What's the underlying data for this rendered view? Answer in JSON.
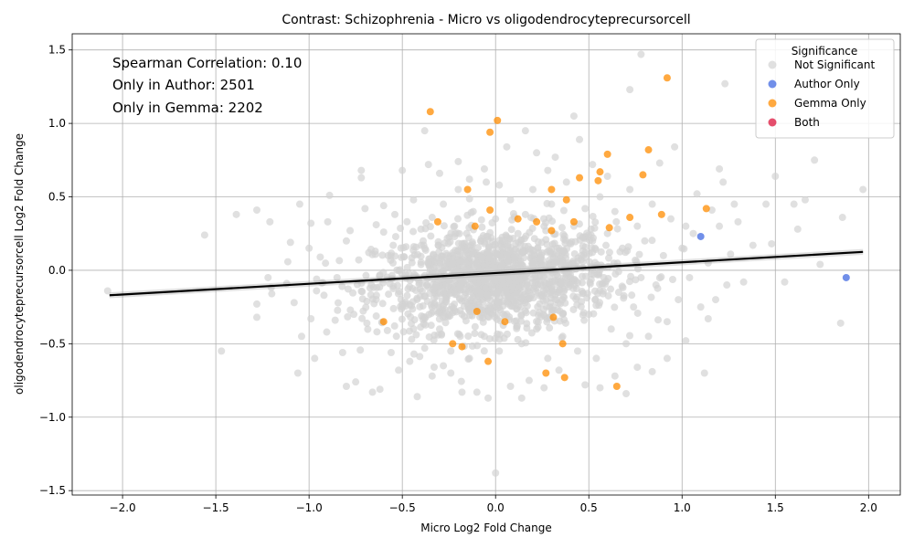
{
  "chart_data": {
    "type": "scatter",
    "title": "Contrast: Schizophrenia - Micro vs oligodendrocyteprecursorcell",
    "xlabel": "Micro Log2 Fold Change",
    "ylabel": "oligodendrocyteprecursorcell Log2 Fold Change",
    "xlim": [
      -2.27,
      2.17
    ],
    "ylim": [
      -1.53,
      1.61
    ],
    "xticks": [
      "−2.0",
      "−1.5",
      "−1.0",
      "−0.5",
      "0.0",
      "0.5",
      "1.0",
      "1.5",
      "2.0"
    ],
    "xtick_values": [
      -2.0,
      -1.5,
      -1.0,
      -0.5,
      0.0,
      0.5,
      1.0,
      1.5,
      2.0
    ],
    "yticks": [
      "−1.5",
      "−1.0",
      "−0.5",
      "0.0",
      "0.5",
      "1.0",
      "1.5"
    ],
    "ytick_values": [
      -1.5,
      -1.0,
      -0.5,
      0.0,
      0.5,
      1.0,
      1.5
    ],
    "grid": true,
    "annotations": [
      "Spearman Correlation: 0.10",
      "Only in Author: 2501",
      "Only in Gemma: 2202"
    ],
    "legend": {
      "title": "Significance",
      "placement": "top-right",
      "entries": [
        {
          "label": "Not Significant",
          "color": "#d3d3d3"
        },
        {
          "label": "Author Only",
          "color": "#4169e1"
        },
        {
          "label": "Gemma Only",
          "color": "#ff8c00"
        },
        {
          "label": "Both",
          "color": "#dc143c"
        }
      ]
    },
    "regression_line": {
      "x": [
        -2.07,
        1.97
      ],
      "y": [
        -0.17,
        0.125
      ],
      "color": "#000000"
    },
    "series": [
      {
        "name": "Not Significant",
        "color": "#d3d3d3",
        "points": [
          [
            -2.08,
            -0.14
          ],
          [
            -1.56,
            0.24
          ],
          [
            -1.47,
            -0.55
          ],
          [
            -1.39,
            0.38
          ],
          [
            -1.28,
            0.41
          ],
          [
            -1.28,
            -0.23
          ],
          [
            -1.28,
            -0.32
          ],
          [
            -1.22,
            -0.05
          ],
          [
            -1.21,
            0.33
          ],
          [
            -1.2,
            -0.16
          ],
          [
            -1.12,
            -0.09
          ],
          [
            -1.1,
            0.19
          ],
          [
            -1.08,
            -0.22
          ],
          [
            -1.06,
            -0.7
          ],
          [
            -1.05,
            0.45
          ],
          [
            -1.04,
            -0.45
          ],
          [
            -0.99,
            0.32
          ],
          [
            -0.99,
            -0.33
          ],
          [
            -0.97,
            -0.6
          ],
          [
            -0.94,
            0.09
          ],
          [
            -0.92,
            -0.17
          ],
          [
            -0.89,
            0.51
          ],
          [
            -0.86,
            -0.34
          ],
          [
            -0.82,
            -0.56
          ],
          [
            -0.8,
            -0.79
          ],
          [
            -0.78,
            0.27
          ],
          [
            -0.75,
            -0.76
          ],
          [
            -0.72,
            0.68
          ],
          [
            -0.72,
            0.63
          ],
          [
            -0.69,
            -0.36
          ],
          [
            -0.66,
            -0.83
          ],
          [
            -0.64,
            0.31
          ],
          [
            -0.62,
            -0.81
          ],
          [
            -0.6,
            0.44
          ],
          [
            -0.56,
            -0.56
          ],
          [
            -0.52,
            -0.68
          ],
          [
            -0.5,
            0.68
          ],
          [
            -0.46,
            -0.62
          ],
          [
            -0.42,
            -0.86
          ],
          [
            -0.38,
            0.95
          ],
          [
            -0.36,
            0.72
          ],
          [
            -0.34,
            -0.72
          ],
          [
            -0.3,
            0.66
          ],
          [
            -0.28,
            -0.65
          ],
          [
            -0.24,
            -0.7
          ],
          [
            -0.2,
            0.74
          ],
          [
            -0.18,
            -0.83
          ],
          [
            -0.14,
            0.62
          ],
          [
            -0.1,
            -0.83
          ],
          [
            -0.06,
            0.69
          ],
          [
            -0.04,
            -0.87
          ],
          [
            0.0,
            -1.38
          ],
          [
            0.02,
            0.58
          ],
          [
            0.06,
            0.84
          ],
          [
            0.08,
            -0.79
          ],
          [
            0.14,
            -0.87
          ],
          [
            0.16,
            0.95
          ],
          [
            0.18,
            -0.75
          ],
          [
            0.22,
            0.8
          ],
          [
            0.26,
            -0.8
          ],
          [
            0.28,
            0.68
          ],
          [
            0.32,
            0.77
          ],
          [
            0.34,
            -0.68
          ],
          [
            0.42,
            1.05
          ],
          [
            0.45,
            0.89
          ],
          [
            0.48,
            -0.78
          ],
          [
            0.52,
            0.72
          ],
          [
            0.56,
            -0.8
          ],
          [
            0.6,
            0.64
          ],
          [
            0.64,
            -0.72
          ],
          [
            0.7,
            -0.84
          ],
          [
            0.72,
            1.23
          ],
          [
            0.76,
            -0.66
          ],
          [
            0.78,
            1.47
          ],
          [
            0.84,
            -0.69
          ],
          [
            0.88,
            0.73
          ],
          [
            0.92,
            -0.6
          ],
          [
            0.96,
            0.84
          ],
          [
            1.02,
            -0.48
          ],
          [
            1.08,
            0.52
          ],
          [
            1.12,
            -0.7
          ],
          [
            1.16,
            0.41
          ],
          [
            1.2,
            0.69
          ],
          [
            1.22,
            0.6
          ],
          [
            1.23,
            1.27
          ],
          [
            1.28,
            0.45
          ],
          [
            1.33,
            -0.08
          ],
          [
            1.38,
            0.17
          ],
          [
            1.45,
            0.45
          ],
          [
            1.48,
            0.18
          ],
          [
            1.5,
            0.64
          ],
          [
            1.55,
            -0.08
          ],
          [
            1.6,
            0.45
          ],
          [
            1.62,
            0.28
          ],
          [
            1.66,
            0.48
          ],
          [
            1.71,
            0.75
          ],
          [
            1.74,
            0.04
          ],
          [
            1.85,
            -0.36
          ],
          [
            1.86,
            0.36
          ],
          [
            1.97,
            0.55
          ],
          [
            1.3,
            0.33
          ],
          [
            1.26,
            0.11
          ],
          [
            1.18,
            -0.2
          ],
          [
            1.14,
            -0.33
          ],
          [
            1.02,
            0.3
          ],
          [
            -1.0,
            0.15
          ],
          [
            -0.96,
            -0.14
          ],
          [
            -0.9,
            0.33
          ],
          [
            -0.85,
            -0.05
          ],
          [
            -0.8,
            0.2
          ],
          [
            -0.76,
            -0.3
          ],
          [
            -0.7,
            0.42
          ],
          [
            -0.68,
            0.12
          ],
          [
            -0.64,
            -0.2
          ],
          [
            -0.6,
            0.26
          ],
          [
            -0.58,
            -0.41
          ],
          [
            -0.55,
            0.05
          ],
          [
            -0.54,
            0.38
          ],
          [
            -0.5,
            -0.25
          ],
          [
            -0.48,
            0.16
          ],
          [
            -0.45,
            -0.47
          ],
          [
            -0.44,
            0.48
          ],
          [
            -0.4,
            0.28
          ],
          [
            -0.38,
            -0.53
          ],
          [
            -0.36,
            0.05
          ],
          [
            -0.34,
            0.36
          ],
          [
            -0.3,
            -0.4
          ],
          [
            -0.28,
            0.45
          ],
          [
            -0.26,
            0.1
          ],
          [
            -0.24,
            -0.55
          ],
          [
            -0.22,
            0.3
          ],
          [
            -0.2,
            0.55
          ],
          [
            -0.18,
            -0.3
          ],
          [
            -0.16,
            0.05
          ],
          [
            -0.14,
            -0.6
          ],
          [
            -0.12,
            0.4
          ],
          [
            -0.1,
            -0.2
          ],
          [
            -0.08,
            0.2
          ],
          [
            -0.06,
            -0.45
          ],
          [
            -0.05,
            0.6
          ],
          [
            -0.02,
            -0.1
          ],
          [
            0.0,
            0.35
          ],
          [
            0.02,
            -0.55
          ],
          [
            0.04,
            0.15
          ],
          [
            0.06,
            -0.3
          ],
          [
            0.08,
            0.48
          ],
          [
            0.1,
            -0.05
          ],
          [
            0.12,
            0.25
          ],
          [
            0.14,
            -0.5
          ],
          [
            0.16,
            0.38
          ],
          [
            0.18,
            -0.15
          ],
          [
            0.2,
            0.55
          ],
          [
            0.22,
            -0.4
          ],
          [
            0.24,
            0.08
          ],
          [
            0.26,
            0.3
          ],
          [
            0.28,
            -0.6
          ],
          [
            0.3,
            0.45
          ],
          [
            0.32,
            -0.2
          ],
          [
            0.34,
            0.15
          ],
          [
            0.36,
            -0.45
          ],
          [
            0.38,
            0.6
          ],
          [
            0.4,
            -0.1
          ],
          [
            0.42,
            0.3
          ],
          [
            0.44,
            -0.55
          ],
          [
            0.46,
            0.1
          ],
          [
            0.48,
            0.42
          ],
          [
            0.5,
            -0.3
          ],
          [
            0.52,
            0.2
          ],
          [
            0.54,
            -0.6
          ],
          [
            0.56,
            0.5
          ],
          [
            0.58,
            -0.05
          ],
          [
            0.6,
            0.25
          ],
          [
            0.62,
            -0.4
          ],
          [
            0.64,
            0.4
          ],
          [
            0.66,
            -0.15
          ],
          [
            0.68,
            0.15
          ],
          [
            0.7,
            -0.5
          ],
          [
            0.72,
            0.55
          ],
          [
            0.74,
            -0.25
          ],
          [
            0.76,
            0.3
          ],
          [
            0.78,
            -0.05
          ],
          [
            0.8,
            0.2
          ],
          [
            0.82,
            -0.45
          ],
          [
            0.84,
            0.45
          ],
          [
            0.86,
            -0.1
          ],
          [
            0.9,
            0.1
          ],
          [
            0.92,
            -0.35
          ],
          [
            0.94,
            0.35
          ],
          [
            0.98,
            -0.2
          ],
          [
            1.0,
            0.15
          ],
          [
            1.04,
            -0.05
          ],
          [
            1.06,
            0.25
          ],
          [
            1.1,
            -0.25
          ],
          [
            1.14,
            0.05
          ],
          [
            1.2,
            0.3
          ],
          [
            1.24,
            -0.1
          ]
        ]
      },
      {
        "name": "Author Only",
        "color": "#4169e1",
        "points": [
          [
            1.1,
            0.23
          ],
          [
            1.88,
            -0.05
          ]
        ]
      },
      {
        "name": "Gemma Only",
        "color": "#ff8c00",
        "points": [
          [
            0.92,
            1.31
          ],
          [
            -0.35,
            1.08
          ],
          [
            0.01,
            1.02
          ],
          [
            -0.03,
            0.94
          ],
          [
            0.82,
            0.82
          ],
          [
            0.6,
            0.79
          ],
          [
            0.56,
            0.67
          ],
          [
            0.79,
            0.65
          ],
          [
            0.45,
            0.63
          ],
          [
            0.55,
            0.61
          ],
          [
            -0.15,
            0.55
          ],
          [
            0.3,
            0.55
          ],
          [
            0.38,
            0.48
          ],
          [
            -0.03,
            0.41
          ],
          [
            0.89,
            0.38
          ],
          [
            1.13,
            0.42
          ],
          [
            0.72,
            0.36
          ],
          [
            0.12,
            0.35
          ],
          [
            0.42,
            0.33
          ],
          [
            -0.31,
            0.33
          ],
          [
            0.22,
            0.33
          ],
          [
            0.3,
            0.27
          ],
          [
            0.61,
            0.29
          ],
          [
            -0.11,
            0.3
          ],
          [
            -0.6,
            -0.35
          ],
          [
            -0.1,
            -0.28
          ],
          [
            0.05,
            -0.35
          ],
          [
            0.31,
            -0.32
          ],
          [
            -0.18,
            -0.52
          ],
          [
            -0.23,
            -0.5
          ],
          [
            0.36,
            -0.5
          ],
          [
            -0.04,
            -0.62
          ],
          [
            0.27,
            -0.7
          ],
          [
            0.37,
            -0.73
          ],
          [
            0.65,
            -0.79
          ]
        ]
      },
      {
        "name": "Both",
        "color": "#dc143c",
        "points": []
      }
    ]
  }
}
